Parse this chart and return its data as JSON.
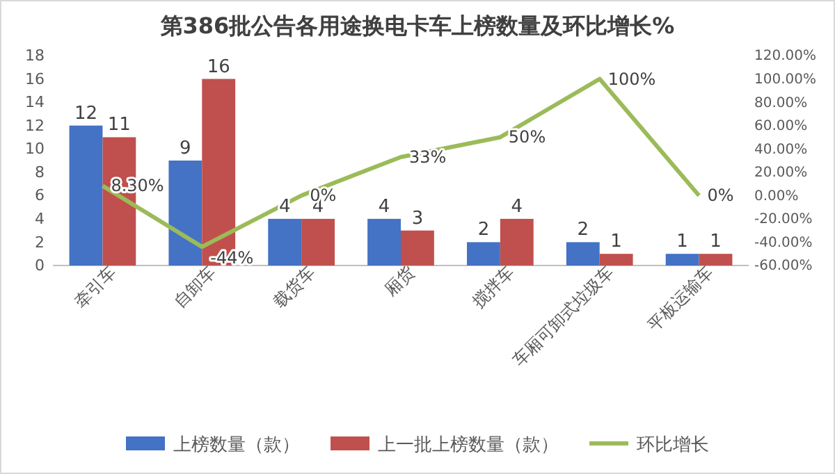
{
  "chart_data": {
    "type": "bar",
    "title": "第386批公告各用途换电卡车上榜数量及环比增长%",
    "categories": [
      "牵引车",
      "自卸车",
      "载货车",
      "厢货",
      "搅拌车",
      "车厢可卸式垃圾车",
      "平板运输车"
    ],
    "series": [
      {
        "name": "上榜数量（款）",
        "color": "#4472c4",
        "values": [
          12,
          9,
          4,
          4,
          2,
          2,
          1
        ]
      },
      {
        "name": "上一批上榜数量（款）",
        "color": "#c0504d",
        "values": [
          11,
          16,
          4,
          3,
          4,
          1,
          1
        ]
      },
      {
        "name": "环比增长",
        "type": "line",
        "axis": "y2",
        "color": "#9bbb59",
        "values": [
          8.3,
          -44,
          0,
          33,
          50,
          100,
          0
        ],
        "value_labels": [
          "8.30%",
          "-44%",
          "0%",
          "33%",
          "50%",
          "100%",
          "0%"
        ]
      }
    ],
    "data_labels": true,
    "ylim": [
      0,
      18
    ],
    "yticks": [
      0,
      2,
      4,
      6,
      8,
      10,
      12,
      14,
      16,
      18
    ],
    "y2lim": [
      -60,
      120
    ],
    "y2ticks": [
      {
        "value": -60,
        "label": "-60.00%"
      },
      {
        "value": -40,
        "label": "-40.00%"
      },
      {
        "value": -20,
        "label": "-20.00%"
      },
      {
        "value": 0,
        "label": "0.00%"
      },
      {
        "value": 20,
        "label": "20.00%"
      },
      {
        "value": 40,
        "label": "40.00%"
      },
      {
        "value": 60,
        "label": "60.00%"
      },
      {
        "value": 80,
        "label": "80.00%"
      },
      {
        "value": 100,
        "label": "100.00%"
      },
      {
        "value": 120,
        "label": "120.00%"
      }
    ],
    "legend": "bottom",
    "grid": false
  }
}
